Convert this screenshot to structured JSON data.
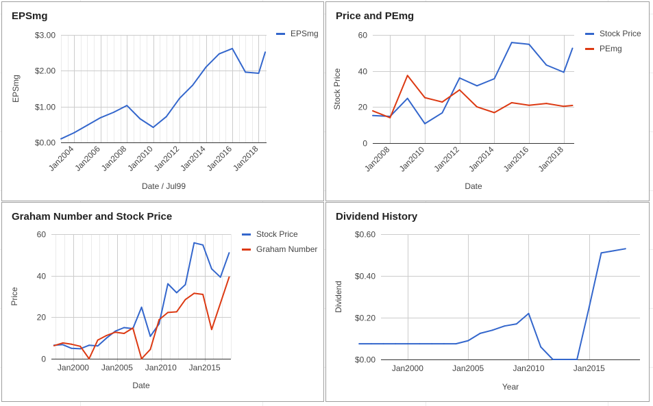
{
  "colors": {
    "blue": "#3366cc",
    "red": "#dc3912",
    "grid": "#cccccc",
    "axis": "#333333",
    "text": "#444444",
    "title": "#222222"
  },
  "chart_data": [
    {
      "type": "line",
      "title": "EPSmg",
      "xlabel": "Date / Jul99",
      "ylabel": "EPSmg",
      "ylim": [
        0,
        3
      ],
      "y_ticks": [
        "$0.00",
        "$1.00",
        "$2.00",
        "$3.00"
      ],
      "x_ticks": [
        "Jan2004",
        "Jan2006",
        "Jan2008",
        "Jan2010",
        "Jan2012",
        "Jan2014",
        "Jan2016",
        "Jan2018"
      ],
      "legend_position": "right",
      "series": [
        {
          "name": "EPSmg",
          "color": "#3366cc",
          "x": [
            "Jan2003",
            "Jan2004",
            "Jan2005",
            "Jan2006",
            "Jan2007",
            "Jan2008",
            "Jan2009",
            "Jan2010",
            "Jan2011",
            "Jan2012",
            "Jan2013",
            "Jan2014",
            "Jan2015",
            "Jan2016",
            "Jan2017",
            "Jan2018",
            "Jul2018"
          ],
          "values": [
            0.1,
            0.27,
            0.48,
            0.69,
            0.84,
            1.03,
            0.66,
            0.42,
            0.72,
            1.23,
            1.6,
            2.1,
            2.47,
            2.62,
            1.96,
            1.93,
            2.52
          ]
        }
      ]
    },
    {
      "type": "line",
      "title": "Price and PEmg",
      "xlabel": "Date",
      "ylabel": "Stock Price",
      "ylim": [
        0,
        60
      ],
      "y_ticks": [
        "0",
        "20",
        "40",
        "60"
      ],
      "x_ticks": [
        "Jan2008",
        "Jan2010",
        "Jan2012",
        "Jan2014",
        "Jan2016",
        "Jan2018"
      ],
      "legend_position": "right",
      "series": [
        {
          "name": "Stock Price",
          "color": "#3366cc",
          "x": [
            "Jan2007",
            "Jan2008",
            "Jan2009",
            "Jan2010",
            "Jan2011",
            "Jan2012",
            "Jan2013",
            "Jan2014",
            "Jan2015",
            "Jan2016",
            "Jan2017",
            "Jan2018",
            "Jul2018"
          ],
          "values": [
            15.3,
            14.8,
            24.8,
            10.8,
            16.8,
            36.1,
            31.8,
            35.7,
            55.8,
            54.8,
            43.3,
            39.3,
            52.6
          ]
        },
        {
          "name": "PEmg",
          "color": "#dc3912",
          "x": [
            "Jan2007",
            "Jan2008",
            "Jan2009",
            "Jan2010",
            "Jan2011",
            "Jan2012",
            "Jan2013",
            "Jan2014",
            "Jan2015",
            "Jan2016",
            "Jan2017",
            "Jan2018",
            "Jul2018"
          ],
          "values": [
            17.9,
            14.1,
            37.5,
            25.2,
            22.8,
            29.5,
            20.1,
            16.9,
            22.4,
            21.0,
            22.0,
            20.4,
            20.9
          ]
        }
      ]
    },
    {
      "type": "line",
      "title": "Graham Number and Stock Price",
      "xlabel": "Date",
      "ylabel": "Price",
      "ylim": [
        0,
        60
      ],
      "y_ticks": [
        "0",
        "20",
        "40",
        "60"
      ],
      "x_ticks": [
        "Jan2000",
        "Jan2005",
        "Jan2010",
        "Jan2015"
      ],
      "legend_position": "right",
      "series": [
        {
          "name": "Stock Price",
          "color": "#3366cc",
          "x": [
            1997.8,
            1998.8,
            1999.8,
            2000.8,
            2001.8,
            2002.8,
            2003.8,
            2004.8,
            2005.8,
            2006.8,
            2007.8,
            2008.8,
            2009.8,
            2010.8,
            2011.8,
            2012.8,
            2013.8,
            2014.8,
            2015.8,
            2016.8,
            2017.8
          ],
          "values": [
            6.5,
            6.8,
            5.0,
            4.8,
            6.5,
            6.2,
            10.0,
            13.3,
            15.0,
            14.5,
            24.8,
            10.8,
            16.8,
            36.1,
            31.8,
            35.7,
            55.8,
            54.8,
            43.3,
            39.3,
            51.0
          ]
        },
        {
          "name": "Graham Number",
          "color": "#dc3912",
          "x": [
            1997.8,
            1998.8,
            1999.8,
            2000.8,
            2001.8,
            2002.8,
            2003.8,
            2004.8,
            2005.8,
            2006.8,
            2007.8,
            2008.8,
            2009.8,
            2010.8,
            2011.8,
            2012.8,
            2013.8,
            2014.8,
            2015.8,
            2017.8
          ],
          "values": [
            6.3,
            7.6,
            7.0,
            6.0,
            0,
            9.0,
            11.2,
            12.8,
            12.2,
            14.8,
            0,
            4.5,
            18.8,
            22.3,
            22.6,
            28.5,
            31.5,
            31.0,
            14.1,
            39.3
          ]
        }
      ]
    },
    {
      "type": "line",
      "title": "Dividend History",
      "xlabel": "Year",
      "ylabel": "Dividend",
      "ylim": [
        0,
        0.6
      ],
      "y_ticks": [
        "$0.00",
        "$0.20",
        "$0.40",
        "$0.60"
      ],
      "x_ticks": [
        "Jan2000",
        "Jan2005",
        "Jan2010",
        "Jan2015"
      ],
      "series": [
        {
          "name": "",
          "color": "#3366cc",
          "x": [
            1996,
            1997,
            1998,
            1999,
            2000,
            2001,
            2002,
            2003,
            2004,
            2005,
            2006,
            2007,
            2008,
            2009,
            2010,
            2011,
            2012,
            2013,
            2014,
            2015,
            2016,
            2017,
            2018
          ],
          "values": [
            0.075,
            0.075,
            0.075,
            0.075,
            0.075,
            0.075,
            0.075,
            0.075,
            0.075,
            0.09,
            0.125,
            0.14,
            0.16,
            0.17,
            0.22,
            0.06,
            0.0,
            0.0,
            0.0,
            0.25,
            0.51,
            0.52,
            0.53
          ]
        }
      ]
    }
  ]
}
